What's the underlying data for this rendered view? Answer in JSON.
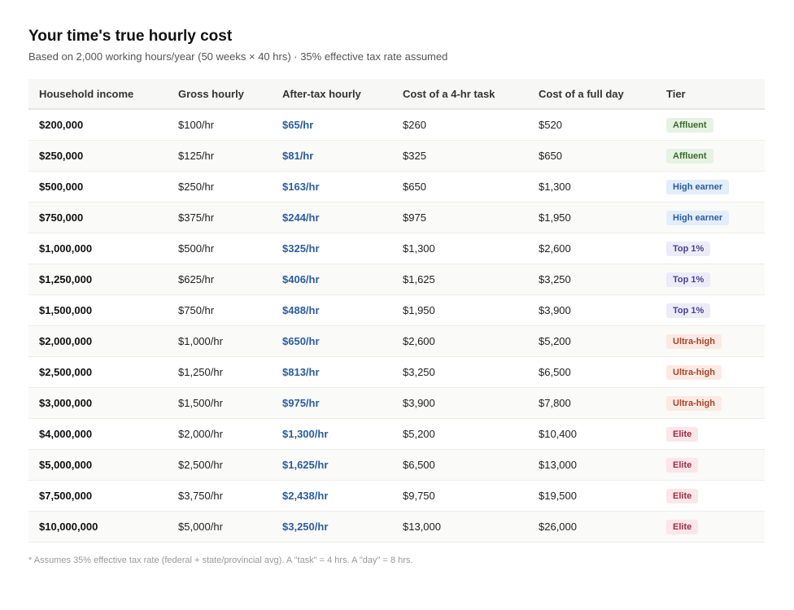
{
  "header": {
    "title": "Your time's true hourly cost",
    "subtitle": "Based on 2,000 working hours/year (50 weeks × 40 hrs) · 35% effective tax rate assumed"
  },
  "table": {
    "columns": [
      "Household income",
      "Gross hourly",
      "After-tax hourly",
      "Cost of a 4-hr task",
      "Cost of a full day",
      "Tier"
    ],
    "rows": [
      {
        "income": "$200,000",
        "gross": "$100/hr",
        "after_tax": "$65/hr",
        "task": "$260",
        "day": "$520",
        "tier": "Affluent",
        "tier_key": "affluent"
      },
      {
        "income": "$250,000",
        "gross": "$125/hr",
        "after_tax": "$81/hr",
        "task": "$325",
        "day": "$650",
        "tier": "Affluent",
        "tier_key": "affluent"
      },
      {
        "income": "$500,000",
        "gross": "$250/hr",
        "after_tax": "$163/hr",
        "task": "$650",
        "day": "$1,300",
        "tier": "High earner",
        "tier_key": "high"
      },
      {
        "income": "$750,000",
        "gross": "$375/hr",
        "after_tax": "$244/hr",
        "task": "$975",
        "day": "$1,950",
        "tier": "High earner",
        "tier_key": "high"
      },
      {
        "income": "$1,000,000",
        "gross": "$500/hr",
        "after_tax": "$325/hr",
        "task": "$1,300",
        "day": "$2,600",
        "tier": "Top 1%",
        "tier_key": "top"
      },
      {
        "income": "$1,250,000",
        "gross": "$625/hr",
        "after_tax": "$406/hr",
        "task": "$1,625",
        "day": "$3,250",
        "tier": "Top 1%",
        "tier_key": "top"
      },
      {
        "income": "$1,500,000",
        "gross": "$750/hr",
        "after_tax": "$488/hr",
        "task": "$1,950",
        "day": "$3,900",
        "tier": "Top 1%",
        "tier_key": "top"
      },
      {
        "income": "$2,000,000",
        "gross": "$1,000/hr",
        "after_tax": "$650/hr",
        "task": "$2,600",
        "day": "$5,200",
        "tier": "Ultra-high",
        "tier_key": "ultra"
      },
      {
        "income": "$2,500,000",
        "gross": "$1,250/hr",
        "after_tax": "$813/hr",
        "task": "$3,250",
        "day": "$6,500",
        "tier": "Ultra-high",
        "tier_key": "ultra"
      },
      {
        "income": "$3,000,000",
        "gross": "$1,500/hr",
        "after_tax": "$975/hr",
        "task": "$3,900",
        "day": "$7,800",
        "tier": "Ultra-high",
        "tier_key": "ultra"
      },
      {
        "income": "$4,000,000",
        "gross": "$2,000/hr",
        "after_tax": "$1,300/hr",
        "task": "$5,200",
        "day": "$10,400",
        "tier": "Elite",
        "tier_key": "elite"
      },
      {
        "income": "$5,000,000",
        "gross": "$2,500/hr",
        "after_tax": "$1,625/hr",
        "task": "$6,500",
        "day": "$13,000",
        "tier": "Elite",
        "tier_key": "elite"
      },
      {
        "income": "$7,500,000",
        "gross": "$3,750/hr",
        "after_tax": "$2,438/hr",
        "task": "$9,750",
        "day": "$19,500",
        "tier": "Elite",
        "tier_key": "elite"
      },
      {
        "income": "$10,000,000",
        "gross": "$5,000/hr",
        "after_tax": "$3,250/hr",
        "task": "$13,000",
        "day": "$26,000",
        "tier": "Elite",
        "tier_key": "elite"
      }
    ]
  },
  "tier_colors": {
    "affluent": {
      "bg": "#e6f2e3",
      "fg": "#3d6b2e"
    },
    "high": {
      "bg": "#e3eefa",
      "fg": "#2a5d9f"
    },
    "top": {
      "bg": "#ecebf8",
      "fg": "#4a3f94"
    },
    "ultra": {
      "bg": "#fbeae3",
      "fg": "#a4452a"
    },
    "elite": {
      "bg": "#fbe6ea",
      "fg": "#9b2d45"
    }
  },
  "footnote": "* Assumes 35% effective tax rate (federal + state/provincial avg). A \"task\" = 4 hrs. A \"day\" = 8 hrs."
}
